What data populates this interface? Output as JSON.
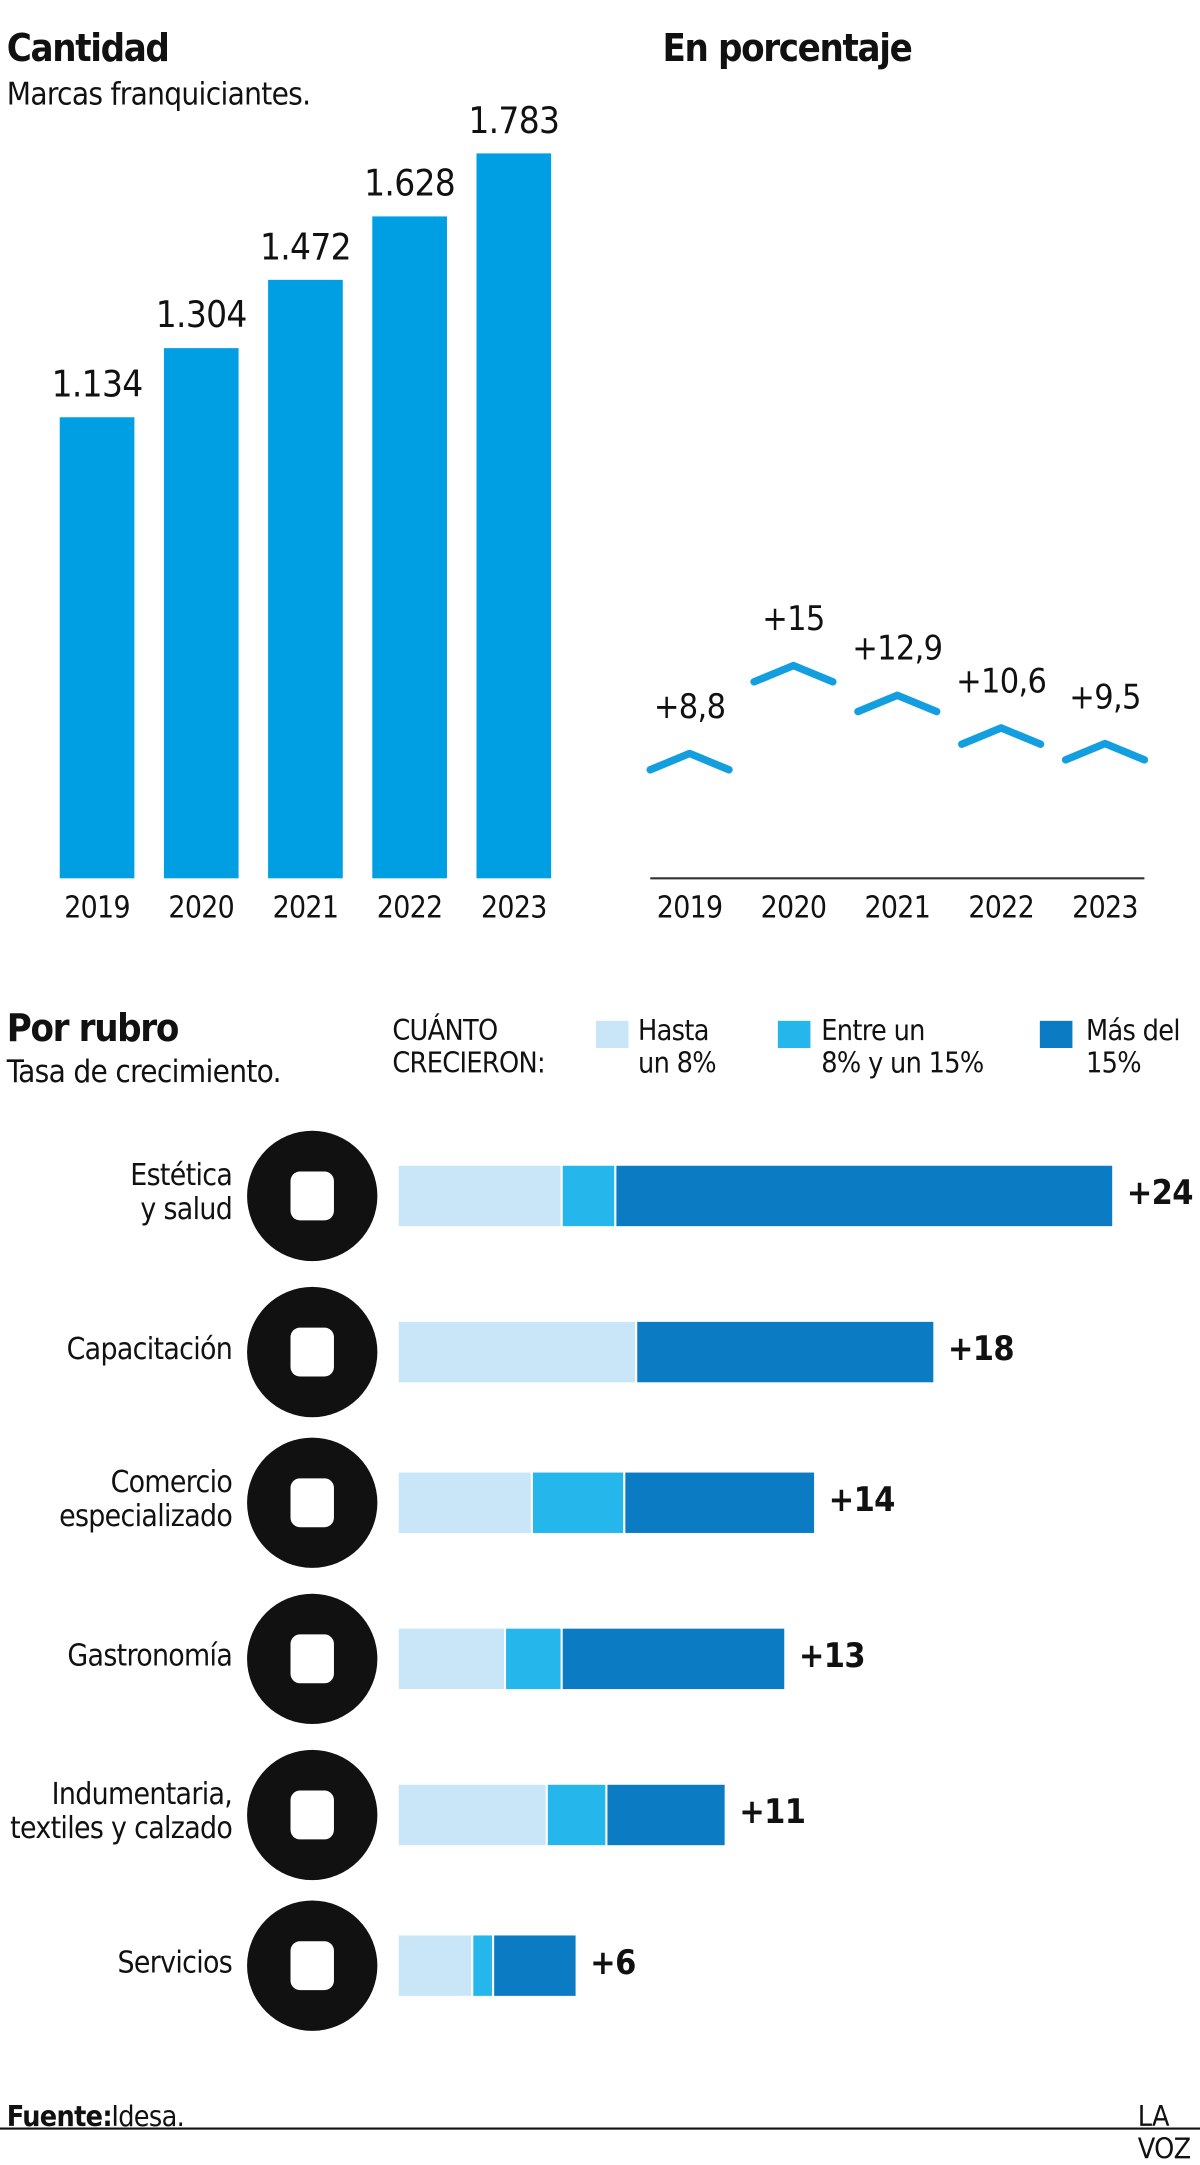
{
  "chart_data": [
    {
      "type": "bar",
      "title": "Cantidad",
      "subtitle": "Marcas franquiciantes.",
      "categories": [
        "2019",
        "2020",
        "2021",
        "2022",
        "2023"
      ],
      "values": [
        1134,
        1304,
        1472,
        1628,
        1783
      ],
      "value_labels": [
        "1.134",
        "1.304",
        "1.472",
        "1.628",
        "1.783"
      ],
      "color": "#009fe3"
    },
    {
      "type": "line",
      "title": "En porcentaje",
      "categories": [
        "2019",
        "2020",
        "2021",
        "2022",
        "2023"
      ],
      "values": [
        8.8,
        15,
        12.9,
        10.6,
        9.5
      ],
      "value_labels": [
        "+8,8",
        "+15",
        "+12,9",
        "+10,6",
        "+9,5"
      ],
      "color": "#139fdf"
    },
    {
      "type": "bar",
      "orientation": "horizontal",
      "stacked": true,
      "title": "Por rubro",
      "subtitle": "Tasa de crecimiento.",
      "legend_title": "CUÁNTO\nCRECIERON:",
      "categories": [
        "Estética\ny salud",
        "Capacitación",
        "Comercio\nespecializado",
        "Gastronomía",
        "Indumentaria,\ntextiles y calzado",
        "Servicios"
      ],
      "series": [
        {
          "name": "Hasta\nun 8%",
          "color": "#c9e6f8",
          "values": [
            5.5,
            8.0,
            4.5,
            3.6,
            5.0,
            2.5
          ]
        },
        {
          "name": "Entre un\n8% y un 15%",
          "color": "#25b6ec",
          "values": [
            1.8,
            0,
            3.1,
            1.9,
            2.0,
            0.7
          ]
        },
        {
          "name": "Más del\n15%",
          "color": "#0b7bc4",
          "values": [
            16.7,
            10.0,
            6.4,
            7.5,
            4.0,
            2.8
          ]
        }
      ],
      "totals": [
        24,
        18,
        14,
        13,
        11,
        6
      ],
      "total_labels": [
        "+24",
        "+18",
        "+14",
        "+13",
        "+11",
        "+6"
      ]
    }
  ],
  "footer": {
    "source_label": "Fuente:",
    "source": "Idesa.",
    "brand": "LA VOZ"
  }
}
